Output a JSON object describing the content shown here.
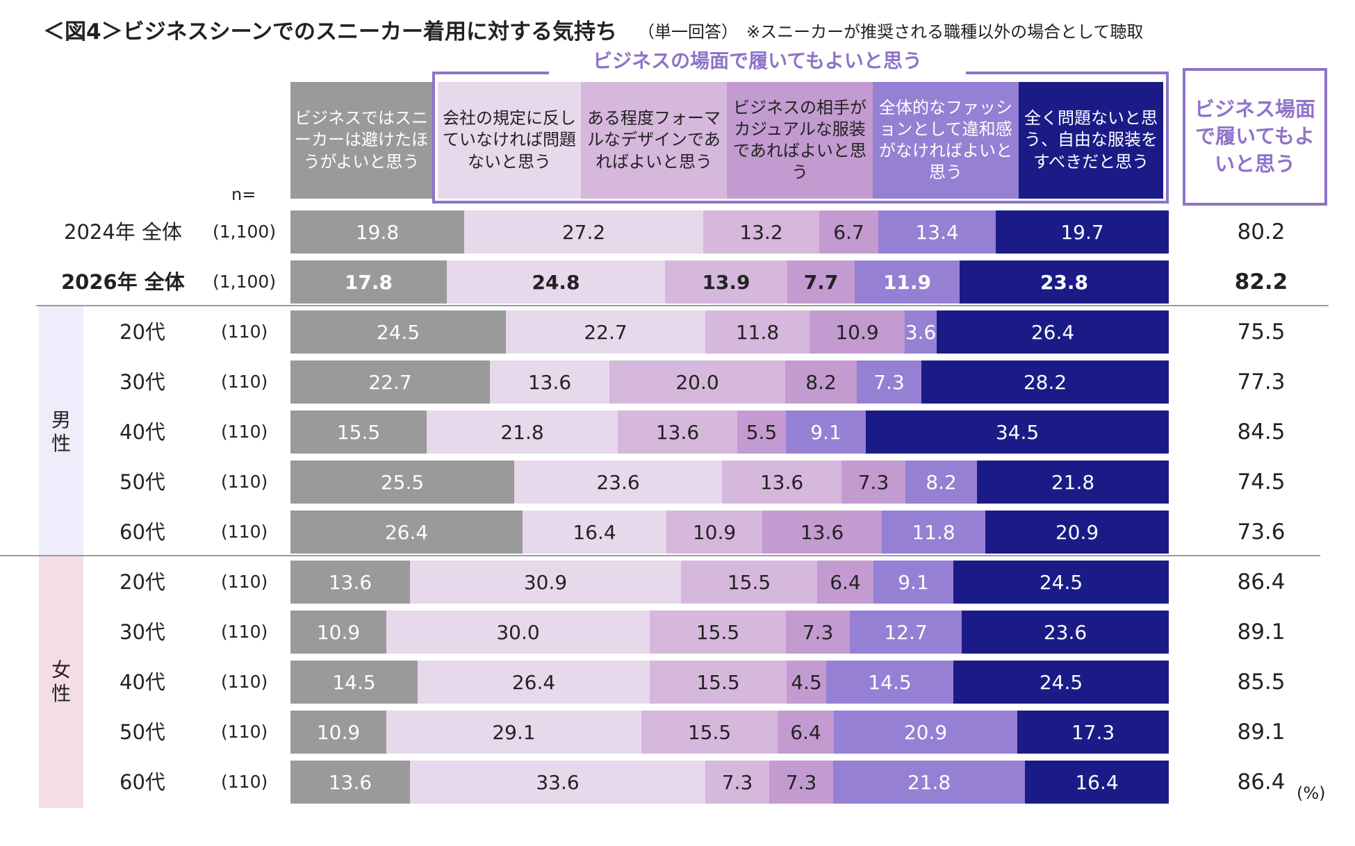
{
  "title": "＜図4＞ビジネスシーンでのスニーカー着用に対する気持ち",
  "subtitle": "（単一回答）　※スニーカーが推奨される職種以外の場合として聴取",
  "group_label": "ビジネスの場面で履いてもよいと思う",
  "total_header": "ビジネス場面で履いてもよいと思う",
  "n_label": "n=",
  "unit": "(%)",
  "colors": {
    "cat1": "#9a9a9a",
    "cat2": "#e8d8ec",
    "cat3": "#d6b8dd",
    "cat4": "#c39bd0",
    "cat5": "#9580d4",
    "cat6": "#1b1b88",
    "accent": "#8e73c8",
    "male_band": "#ededfb",
    "female_band": "#f5dde6"
  },
  "chart_data": {
    "type": "stacked-bar-horizontal",
    "unit": "%",
    "xlim": [
      0,
      100
    ],
    "series": [
      {
        "name": "ビジネスではスニーカーは避けたほうがよいと思う"
      },
      {
        "name": "会社の規定に反していなければ問題ないと思う"
      },
      {
        "name": "ある程度フォーマルなデザインであればよいと思う"
      },
      {
        "name": "ビジネスの相手がカジュアルな服装であればよいと思う"
      },
      {
        "name": "全体的なファッションとして違和感がなければよいと思う"
      },
      {
        "name": "全く問題ないと思う、自由な服装をすべきだと思う"
      }
    ],
    "gender_groups": [
      {
        "label": "男性",
        "first_row": 2,
        "last_row": 6
      },
      {
        "label": "女性",
        "first_row": 7,
        "last_row": 11
      }
    ],
    "rows": [
      {
        "label": "2024年 全体",
        "n": "(1,100)",
        "values": [
          "19.8",
          "27.2",
          "13.2",
          "6.7",
          "13.4",
          "19.7"
        ],
        "total": "80.2",
        "bold": false
      },
      {
        "label": "2026年 全体",
        "n": "(1,100)",
        "values": [
          "17.8",
          "24.8",
          "13.9",
          "7.7",
          "11.9",
          "23.8"
        ],
        "total": "82.2",
        "bold": true
      },
      {
        "label": "20代",
        "n": "(110)",
        "values": [
          "24.5",
          "22.7",
          "11.8",
          "10.9",
          "3.6",
          "26.4"
        ],
        "total": "75.5",
        "bold": false
      },
      {
        "label": "30代",
        "n": "(110)",
        "values": [
          "22.7",
          "13.6",
          "20.0",
          "8.2",
          "7.3",
          "28.2"
        ],
        "total": "77.3",
        "bold": false
      },
      {
        "label": "40代",
        "n": "(110)",
        "values": [
          "15.5",
          "21.8",
          "13.6",
          "5.5",
          "9.1",
          "34.5"
        ],
        "total": "84.5",
        "bold": false
      },
      {
        "label": "50代",
        "n": "(110)",
        "values": [
          "25.5",
          "23.6",
          "13.6",
          "7.3",
          "8.2",
          "21.8"
        ],
        "total": "74.5",
        "bold": false
      },
      {
        "label": "60代",
        "n": "(110)",
        "values": [
          "26.4",
          "16.4",
          "10.9",
          "13.6",
          "11.8",
          "20.9"
        ],
        "total": "73.6",
        "bold": false
      },
      {
        "label": "20代",
        "n": "(110)",
        "values": [
          "13.6",
          "30.9",
          "15.5",
          "6.4",
          "9.1",
          "24.5"
        ],
        "total": "86.4",
        "bold": false
      },
      {
        "label": "30代",
        "n": "(110)",
        "values": [
          "10.9",
          "30.0",
          "15.5",
          "7.3",
          "12.7",
          "23.6"
        ],
        "total": "89.1",
        "bold": false
      },
      {
        "label": "40代",
        "n": "(110)",
        "values": [
          "14.5",
          "26.4",
          "15.5",
          "4.5",
          "14.5",
          "24.5"
        ],
        "total": "85.5",
        "bold": false
      },
      {
        "label": "50代",
        "n": "(110)",
        "values": [
          "10.9",
          "29.1",
          "15.5",
          "6.4",
          "20.9",
          "17.3"
        ],
        "total": "89.1",
        "bold": false
      },
      {
        "label": "60代",
        "n": "(110)",
        "values": [
          "13.6",
          "33.6",
          "7.3",
          "7.3",
          "21.8",
          "16.4"
        ],
        "total": "86.4",
        "bold": false
      }
    ]
  }
}
